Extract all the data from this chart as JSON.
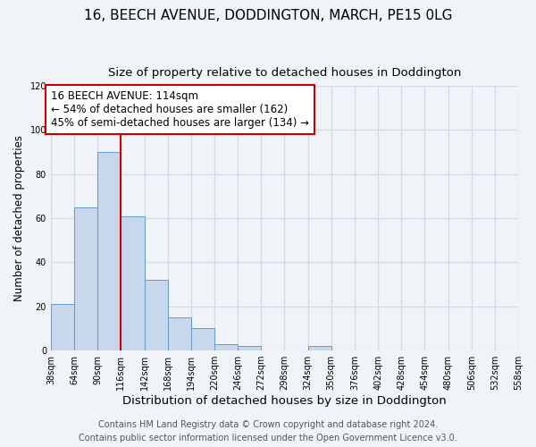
{
  "title": "16, BEECH AVENUE, DODDINGTON, MARCH, PE15 0LG",
  "subtitle": "Size of property relative to detached houses in Doddington",
  "bar_color": "#c8d8ec",
  "bar_edge_color": "#6699cc",
  "bin_edges": [
    38,
    64,
    90,
    116,
    142,
    168,
    194,
    220,
    246,
    272,
    298,
    324,
    350,
    376,
    402,
    428,
    454,
    480,
    506,
    532,
    558
  ],
  "bar_heights": [
    21,
    65,
    90,
    61,
    32,
    15,
    10,
    3,
    2,
    0,
    0,
    2,
    0,
    0,
    0,
    0,
    0,
    0,
    0,
    0
  ],
  "vline_x": 116,
  "vline_color": "#cc0000",
  "annotation_line1": "16 BEECH AVENUE: 114sqm",
  "annotation_line2": "← 54% of detached houses are smaller (162)",
  "annotation_line3": "45% of semi-detached houses are larger (134) →",
  "annotation_box_color": "white",
  "annotation_box_edge_color": "#cc0000",
  "xlabel": "Distribution of detached houses by size in Doddington",
  "ylabel": "Number of detached properties",
  "ylim": [
    0,
    120
  ],
  "yticks": [
    0,
    20,
    40,
    60,
    80,
    100,
    120
  ],
  "xtick_labels": [
    "38sqm",
    "64sqm",
    "90sqm",
    "116sqm",
    "142sqm",
    "168sqm",
    "194sqm",
    "220sqm",
    "246sqm",
    "272sqm",
    "298sqm",
    "324sqm",
    "350sqm",
    "376sqm",
    "402sqm",
    "428sqm",
    "454sqm",
    "480sqm",
    "506sqm",
    "532sqm",
    "558sqm"
  ],
  "footer_line1": "Contains HM Land Registry data © Crown copyright and database right 2024.",
  "footer_line2": "Contains public sector information licensed under the Open Government Licence v3.0.",
  "background_color": "#f0f4f8",
  "grid_color": "#d0dce8",
  "title_fontsize": 11,
  "subtitle_fontsize": 9.5,
  "xlabel_fontsize": 9.5,
  "ylabel_fontsize": 8.5,
  "tick_fontsize": 7,
  "annotation_fontsize": 8.5,
  "footer_fontsize": 7
}
